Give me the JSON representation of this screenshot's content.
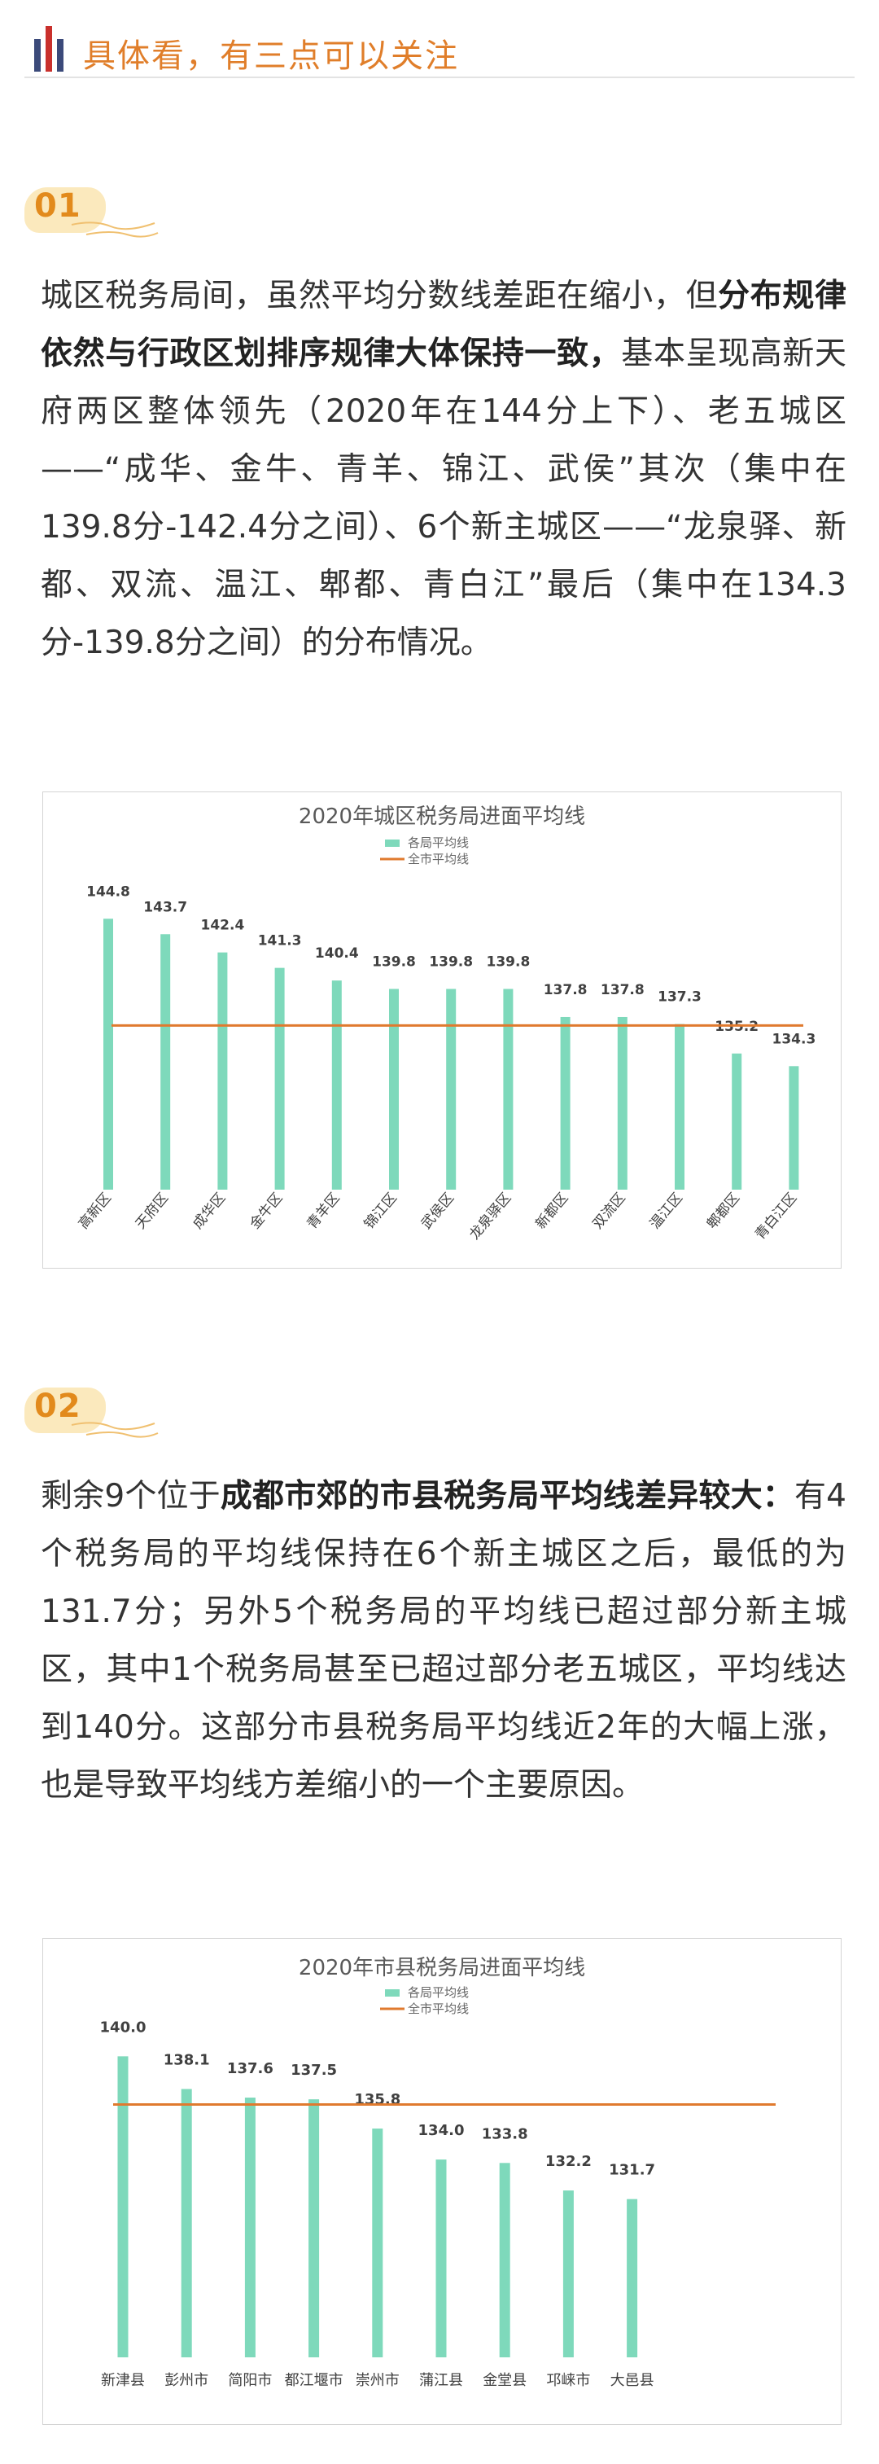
{
  "header": {
    "title": "具体看，有三点可以关注",
    "bar_colors": [
      "#3b4a7a",
      "#c9302c",
      "#3b4a7a"
    ]
  },
  "section1": {
    "number": "01",
    "text1": "城区税务局间，虽然平均分数线差距在缩小，但",
    "bold": "分布规律依然与行政区划排序规律大体保持一致，",
    "text2": "基本呈现高新天府两区整体领先（2020年在144分上下）、老五城区——“成华、金牛、青羊、锦江、武侯”其次（集中在139.8分-142.4分之间）、6个新主城区——“龙泉驿、新都、双流、温江、郫都、青白江”最后（集中在134.3分-139.8分之间）的分布情况。"
  },
  "section2": {
    "number": "02",
    "text1": "剩余9个位于",
    "bold": "成都市郊的市县税务局平均线差异较大：",
    "text2": "有4个税务局的平均线保持在6个新主城区之后，最低的为131.7分；另外5个税务局的平均线已超过部分新主城区，其中1个税务局甚至已超过部分老五城区，平均线达到140分。这部分市县税务局平均线近2年的大幅上涨，也是导致平均线方差缩小的一个主要原因。"
  },
  "chart_data": [
    {
      "type": "bar",
      "title": "2020年城区税务局进面平均线",
      "legend": [
        "各局平均线",
        "全市平均线"
      ],
      "legend_position": "top-center",
      "categories": [
        "高新区",
        "天府区",
        "成华区",
        "金牛区",
        "青羊区",
        "锦江区",
        "武侯区",
        "龙泉驿区",
        "新都区",
        "双流区",
        "温江区",
        "郫都区",
        "青白江区"
      ],
      "series": [
        {
          "name": "各局平均线",
          "values": [
            144.8,
            143.7,
            142.4,
            141.3,
            140.4,
            139.8,
            139.8,
            139.8,
            137.8,
            137.8,
            137.3,
            135.2,
            134.3
          ]
        }
      ],
      "city_average": 137.2,
      "ylim": [
        125.5,
        146.5
      ],
      "grid": false,
      "bar_color": "#7ed9bb",
      "line_color": "#e07a2e"
    },
    {
      "type": "bar",
      "title": "2020年市县税务局进面平均线",
      "legend": [
        "各局平均线",
        "全市平均线"
      ],
      "legend_position": "top-center",
      "categories": [
        "新津县",
        "彭州市",
        "简阳市",
        "都江堰市",
        "崇州市",
        "蒲江县",
        "金堂县",
        "邛崃市",
        "大邑县"
      ],
      "series": [
        {
          "name": "各局平均线",
          "values": [
            140.0,
            138.1,
            137.6,
            137.5,
            135.8,
            134.0,
            133.8,
            132.2,
            131.7
          ]
        }
      ],
      "city_average": 137.2,
      "ylim": [
        122.5,
        140.3
      ],
      "grid": false,
      "bar_color": "#7ed9bb",
      "line_color": "#e07a2e"
    }
  ]
}
